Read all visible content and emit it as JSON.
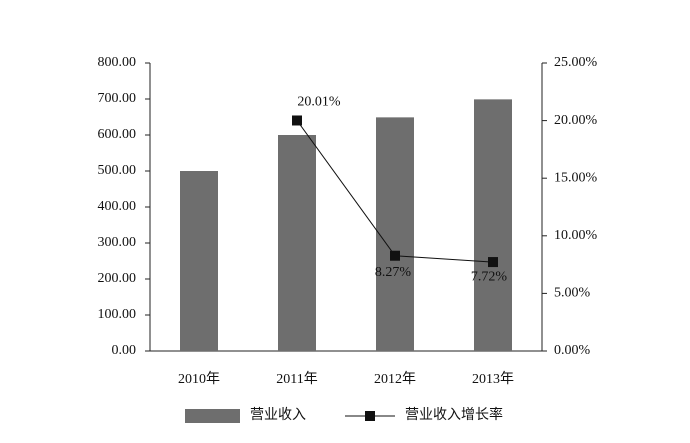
{
  "chart_data": {
    "type": "bar",
    "categories": [
      "2010年",
      "2011年",
      "2012年",
      "2013年"
    ],
    "series": [
      {
        "name": "营业收入",
        "type": "bar",
        "color": "#6e6e6e",
        "values": [
          500,
          600,
          649,
          699
        ]
      },
      {
        "name": "营业收入增长率",
        "type": "line",
        "axis": "y2",
        "color": "#111111",
        "values": [
          null,
          20.01,
          8.27,
          7.72
        ],
        "value_labels": [
          null,
          "20.01%",
          "8.27%",
          "7.72%"
        ]
      }
    ],
    "ylim": [
      0,
      800
    ],
    "yticks": [
      {
        "value": 0,
        "label": "0.00"
      },
      {
        "value": 100,
        "label": "100.00"
      },
      {
        "value": 200,
        "label": "200.00"
      },
      {
        "value": 300,
        "label": "300.00"
      },
      {
        "value": 400,
        "label": "400.00"
      },
      {
        "value": 500,
        "label": "500.00"
      },
      {
        "value": 600,
        "label": "600.00"
      },
      {
        "value": 700,
        "label": "700.00"
      },
      {
        "value": 800,
        "label": "800.00"
      }
    ],
    "y2lim": [
      0,
      25
    ],
    "y2ticks": [
      {
        "value": 0,
        "label": "0.00%"
      },
      {
        "value": 5,
        "label": "5.00%"
      },
      {
        "value": 10,
        "label": "10.00%"
      },
      {
        "value": 15,
        "label": "15.00%"
      },
      {
        "value": 20,
        "label": "20.00%"
      },
      {
        "value": 25,
        "label": "25.00%"
      }
    ],
    "grid": false,
    "legend": "bottom"
  }
}
